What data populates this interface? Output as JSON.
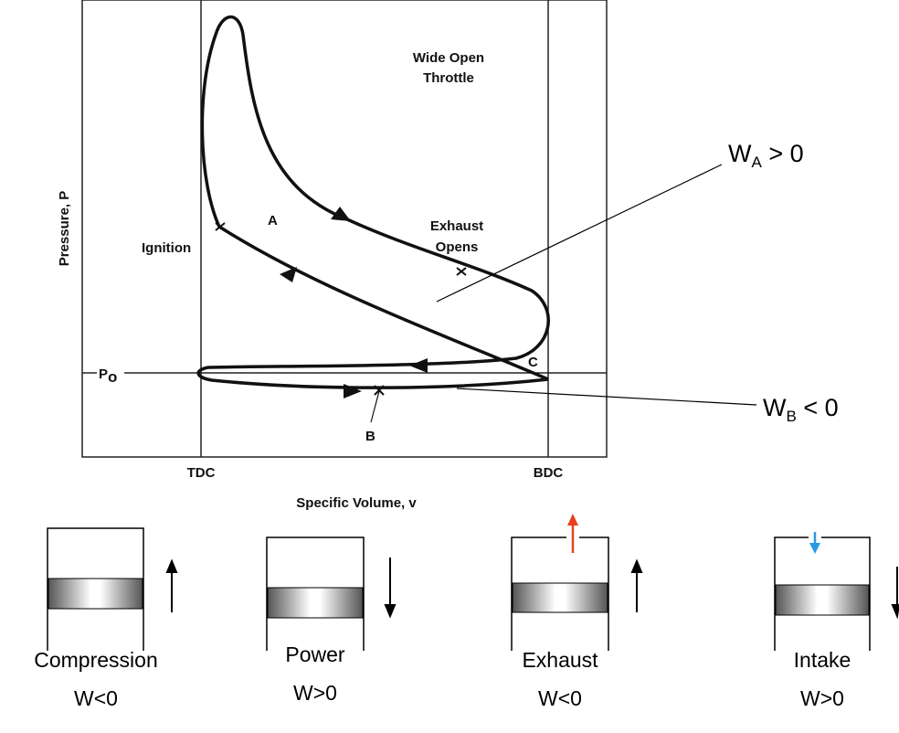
{
  "plot": {
    "throttle": [
      "Wide Open",
      "Throttle"
    ],
    "y_axis_label": "Pressure, P",
    "x_axis_label": "Specific Volume, v",
    "ignition": "Ignition",
    "region_a": "A",
    "exhaust_opens": [
      "Exhaust",
      "Opens"
    ],
    "point_c": "C",
    "point_b": "B",
    "p0": {
      "main": "P",
      "sub": "o"
    },
    "tdc": "TDC",
    "bdc": "BDC"
  },
  "annotations": {
    "wa": {
      "main": "W",
      "sub": "A",
      "rest": " > 0"
    },
    "wb": {
      "main": "W",
      "sub": "B",
      "rest": " < 0"
    }
  },
  "strokes": [
    {
      "name": "Compression",
      "work": "W<0"
    },
    {
      "name": "Power",
      "work": "W>0"
    },
    {
      "name": "Exhaust",
      "work": "W<0"
    },
    {
      "name": "Intake",
      "work": "W>0"
    }
  ]
}
